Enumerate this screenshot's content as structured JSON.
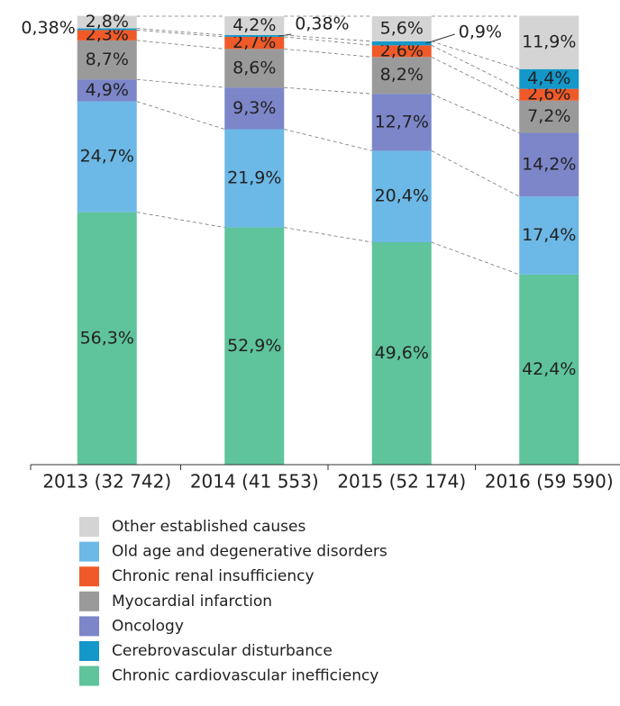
{
  "chart_data": {
    "type": "stacked_bar",
    "categories": [
      "2013 (32 742)",
      "2014 (41 553)",
      "2015 (52 174)",
      "2016 (59 590)"
    ],
    "series": [
      {
        "name": "Chronic cardiovascular inefficiency",
        "color": "#5fc39c",
        "values": [
          56.3,
          52.9,
          49.6,
          42.4
        ],
        "value_labels": [
          "56,3%",
          "52,9%",
          "49,6%",
          "42,4%"
        ]
      },
      {
        "name": "Old age and degenerative disorders",
        "color": "#6cb8e6",
        "values": [
          24.7,
          21.9,
          20.4,
          17.4
        ],
        "value_labels": [
          "24,7%",
          "21,9%",
          "20,4%",
          "17,4%"
        ]
      },
      {
        "name": "Oncology",
        "color": "#7c86c9",
        "values": [
          4.9,
          9.3,
          12.7,
          14.2
        ],
        "value_labels": [
          "4,9%",
          "9,3%",
          "12,7%",
          "14,2%"
        ]
      },
      {
        "name": "Myocardial infarction",
        "color": "#9a9a9a",
        "values": [
          8.7,
          8.6,
          8.2,
          7.2
        ],
        "value_labels": [
          "8,7%",
          "8,6%",
          "8,2%",
          "7,2%"
        ]
      },
      {
        "name": "Chronic renal insufficiency",
        "color": "#f05a28",
        "values": [
          2.3,
          2.7,
          2.6,
          2.6
        ],
        "value_labels": [
          "2,3%",
          "2,7%",
          "2,6%",
          "2,6%"
        ]
      },
      {
        "name": "Cerebrovascular disturbance",
        "color": "#1497c9",
        "values": [
          0.38,
          0.38,
          0.9,
          4.4
        ],
        "value_labels": [
          "0,38%",
          "0,38%",
          "0,9%",
          "4,4%"
        ]
      },
      {
        "name": "Other established causes",
        "color": "#d4d4d4",
        "values": [
          2.8,
          4.2,
          5.6,
          11.9
        ],
        "value_labels": [
          "2,8%",
          "4,2%",
          "5,6%",
          "11,9%"
        ]
      }
    ],
    "ylim": [
      0,
      100
    ],
    "legend_order": [
      6,
      1,
      4,
      3,
      2,
      5,
      0
    ]
  }
}
